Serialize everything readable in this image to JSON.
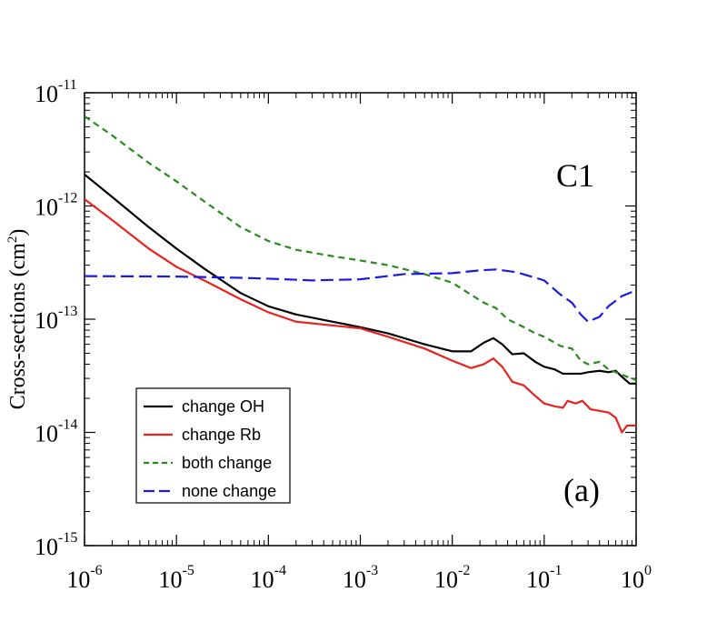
{
  "chart_data": {
    "type": "line",
    "title": "",
    "xlabel": "",
    "ylabel": "Cross-sections (cm",
    "ylabel_unit_exp": "2",
    "ylabel_close": ")",
    "xscale": "log",
    "yscale": "log",
    "xlim": [
      1e-06,
      1
    ],
    "ylim": [
      1e-15,
      1e-11
    ],
    "grid": false,
    "x_ticks": [
      {
        "base": "10",
        "exp": "-6",
        "value": 1e-06
      },
      {
        "base": "10",
        "exp": "-5",
        "value": 1e-05
      },
      {
        "base": "10",
        "exp": "-4",
        "value": 0.0001
      },
      {
        "base": "10",
        "exp": "-3",
        "value": 0.001
      },
      {
        "base": "10",
        "exp": "-2",
        "value": 0.01
      },
      {
        "base": "10",
        "exp": "-1",
        "value": 0.1
      },
      {
        "base": "10",
        "exp": "0",
        "value": 1
      }
    ],
    "y_ticks": [
      {
        "base": "10",
        "exp": "-11",
        "value": 1e-11
      },
      {
        "base": "10",
        "exp": "-12",
        "value": 1e-12
      },
      {
        "base": "10",
        "exp": "-13",
        "value": 1e-13
      },
      {
        "base": "10",
        "exp": "-14",
        "value": 1e-14
      },
      {
        "base": "10",
        "exp": "-15",
        "value": 1e-15
      }
    ],
    "annotations": {
      "panel_id": "C1",
      "panel_letter": "(a)"
    },
    "legend_position": "bottom-left",
    "series": [
      {
        "name": "change OH",
        "color": "#000000",
        "dash": "solid",
        "points": [
          [
            1e-06,
            1.9e-12
          ],
          [
            2e-06,
            1.2e-12
          ],
          [
            5e-06,
            6.5e-13
          ],
          [
            1e-05,
            4.2e-13
          ],
          [
            2e-05,
            2.8e-13
          ],
          [
            5e-05,
            1.7e-13
          ],
          [
            0.0001,
            1.3e-13
          ],
          [
            0.0002,
            1.1e-13
          ],
          [
            0.0005,
            9.5e-14
          ],
          [
            0.001,
            8.5e-14
          ],
          [
            0.002,
            7.5e-14
          ],
          [
            0.005,
            6e-14
          ],
          [
            0.01,
            5.2e-14
          ],
          [
            0.016,
            5.2e-14
          ],
          [
            0.022,
            6.2e-14
          ],
          [
            0.028,
            6.8e-14
          ],
          [
            0.035,
            6e-14
          ],
          [
            0.045,
            4.9e-14
          ],
          [
            0.06,
            5e-14
          ],
          [
            0.08,
            4.2e-14
          ],
          [
            0.1,
            3.8e-14
          ],
          [
            0.13,
            3.6e-14
          ],
          [
            0.16,
            3.3e-14
          ],
          [
            0.2,
            3.3e-14
          ],
          [
            0.25,
            3.3e-14
          ],
          [
            0.3,
            3.4e-14
          ],
          [
            0.4,
            3.5e-14
          ],
          [
            0.5,
            3.4e-14
          ],
          [
            0.6,
            3.5e-14
          ],
          [
            0.7,
            3.1e-14
          ],
          [
            0.85,
            2.7e-14
          ],
          [
            1,
            2.7e-14
          ]
        ]
      },
      {
        "name": "change Rb",
        "color": "#e8231f",
        "dash": "solid",
        "points": [
          [
            1e-06,
            1.15e-12
          ],
          [
            2e-06,
            7.5e-13
          ],
          [
            5e-06,
            4.2e-13
          ],
          [
            1e-05,
            2.9e-13
          ],
          [
            2e-05,
            2.2e-13
          ],
          [
            5e-05,
            1.5e-13
          ],
          [
            0.0001,
            1.15e-13
          ],
          [
            0.0002,
            9.5e-14
          ],
          [
            0.0005,
            8.8e-14
          ],
          [
            0.001,
            8.3e-14
          ],
          [
            0.002,
            7e-14
          ],
          [
            0.005,
            5.5e-14
          ],
          [
            0.01,
            4.3e-14
          ],
          [
            0.016,
            3.7e-14
          ],
          [
            0.022,
            4e-14
          ],
          [
            0.028,
            4.5e-14
          ],
          [
            0.035,
            3.8e-14
          ],
          [
            0.045,
            2.8e-14
          ],
          [
            0.06,
            2.6e-14
          ],
          [
            0.08,
            2.1e-14
          ],
          [
            0.1,
            1.8e-14
          ],
          [
            0.13,
            1.7e-14
          ],
          [
            0.16,
            1.65e-14
          ],
          [
            0.18,
            1.9e-14
          ],
          [
            0.22,
            1.8e-14
          ],
          [
            0.26,
            1.9e-14
          ],
          [
            0.32,
            1.6e-14
          ],
          [
            0.4,
            1.55e-14
          ],
          [
            0.5,
            1.5e-14
          ],
          [
            0.6,
            1.35e-14
          ],
          [
            0.7,
            1e-14
          ],
          [
            0.8,
            1.15e-14
          ],
          [
            1,
            1.15e-14
          ]
        ]
      },
      {
        "name": "both change",
        "color": "#2a8a1e",
        "dash": "short-dash",
        "points": [
          [
            1e-06,
            6.2e-12
          ],
          [
            2e-06,
            4.2e-12
          ],
          [
            5e-06,
            2.4e-12
          ],
          [
            1e-05,
            1.65e-12
          ],
          [
            2e-05,
            1.1e-12
          ],
          [
            5e-05,
            6.5e-13
          ],
          [
            0.0001,
            4.9e-13
          ],
          [
            0.0002,
            4.1e-13
          ],
          [
            0.0005,
            3.6e-13
          ],
          [
            0.001,
            3.3e-13
          ],
          [
            0.002,
            3e-13
          ],
          [
            0.005,
            2.5e-13
          ],
          [
            0.01,
            2.1e-13
          ],
          [
            0.015,
            1.7e-13
          ],
          [
            0.022,
            1.4e-13
          ],
          [
            0.03,
            1.25e-13
          ],
          [
            0.04,
            1e-13
          ],
          [
            0.06,
            8.5e-14
          ],
          [
            0.08,
            7.5e-14
          ],
          [
            0.1,
            7e-14
          ],
          [
            0.15,
            5.8e-14
          ],
          [
            0.2,
            5.5e-14
          ],
          [
            0.25,
            4.3e-14
          ],
          [
            0.3,
            4e-14
          ],
          [
            0.4,
            4.2e-14
          ],
          [
            0.5,
            3.6e-14
          ],
          [
            0.6,
            3.4e-14
          ],
          [
            0.8,
            3.1e-14
          ],
          [
            1,
            2.9e-14
          ]
        ]
      },
      {
        "name": "none change",
        "color": "#1a1ae6",
        "dash": "long-dash",
        "points": [
          [
            1e-06,
            2.4e-13
          ],
          [
            1e-05,
            2.38e-13
          ],
          [
            5e-05,
            2.32e-13
          ],
          [
            0.0001,
            2.28e-13
          ],
          [
            0.0003,
            2.2e-13
          ],
          [
            0.001,
            2.25e-13
          ],
          [
            0.003,
            2.5e-13
          ],
          [
            0.01,
            2.55e-13
          ],
          [
            0.02,
            2.7e-13
          ],
          [
            0.03,
            2.75e-13
          ],
          [
            0.05,
            2.6e-13
          ],
          [
            0.1,
            2.2e-13
          ],
          [
            0.15,
            1.65e-13
          ],
          [
            0.2,
            1.4e-13
          ],
          [
            0.25,
            1.1e-13
          ],
          [
            0.3,
            9.5e-14
          ],
          [
            0.4,
            1.05e-13
          ],
          [
            0.5,
            1.3e-13
          ],
          [
            0.7,
            1.6e-13
          ],
          [
            1,
            1.8e-13
          ]
        ]
      }
    ]
  }
}
